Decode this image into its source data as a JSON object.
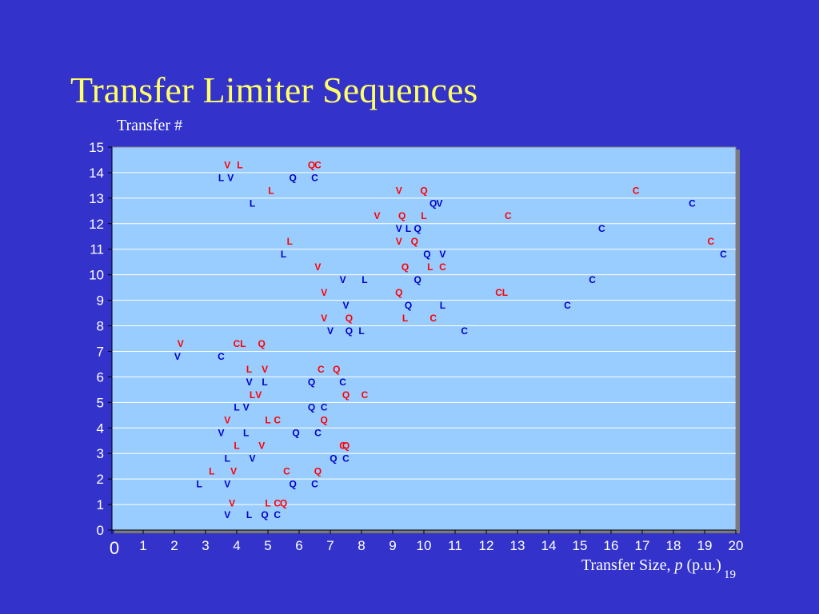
{
  "slide": {
    "title": "Transfer Limiter Sequences",
    "y_axis_title": "Transfer #",
    "x_axis_title_text": "Transfer Size, ",
    "x_axis_title_var": "p",
    "x_axis_title_unit": " (p.u.)",
    "page_number": "19"
  },
  "colors": {
    "background": "#3333cc",
    "plot_area": "#99ccff",
    "title": "#ffff66",
    "even_transfer": "#0000cc",
    "odd_transfer": "#ff0000"
  },
  "chart_data": {
    "type": "scatter",
    "title": "Transfer Limiter Sequences",
    "xlabel": "Transfer Size, p (p.u.)",
    "ylabel": "Transfer #",
    "xlim": [
      0,
      20
    ],
    "ylim": [
      0,
      15
    ],
    "x_ticks": [
      "0",
      "1",
      "2",
      "3",
      "4",
      "5",
      "6",
      "7",
      "8",
      "9",
      "10",
      "11",
      "12",
      "13",
      "14",
      "15",
      "16",
      "17",
      "18",
      "19",
      "20"
    ],
    "y_ticks": [
      "0",
      "1",
      "2",
      "3",
      "4",
      "5",
      "6",
      "7",
      "8",
      "9",
      "10",
      "11",
      "12",
      "13",
      "14",
      "15"
    ],
    "grid": true,
    "marker_labels": [
      "V",
      "L",
      "Q",
      "C"
    ],
    "transfers": [
      {
        "transfer": 0.6,
        "points": [
          {
            "label": "V",
            "x": 3.7
          },
          {
            "label": "L",
            "x": 4.4
          },
          {
            "label": "Q",
            "x": 4.9
          },
          {
            "label": "C",
            "x": 5.3
          }
        ]
      },
      {
        "transfer": 1.05,
        "points": [
          {
            "label": "V",
            "x": 3.85
          },
          {
            "label": "L",
            "x": 5.0
          },
          {
            "label": "C",
            "x": 5.3
          },
          {
            "label": "Q",
            "x": 5.5
          }
        ]
      },
      {
        "transfer": 1.8,
        "points": [
          {
            "label": "L",
            "x": 2.8
          },
          {
            "label": "V",
            "x": 3.7
          },
          {
            "label": "Q",
            "x": 5.8
          },
          {
            "label": "C",
            "x": 6.5
          }
        ]
      },
      {
        "transfer": 2.3,
        "points": [
          {
            "label": "L",
            "x": 3.2
          },
          {
            "label": "V",
            "x": 3.9
          },
          {
            "label": "C",
            "x": 5.6
          },
          {
            "label": "Q",
            "x": 6.6
          }
        ]
      },
      {
        "transfer": 2.8,
        "points": [
          {
            "label": "L",
            "x": 3.7
          },
          {
            "label": "V",
            "x": 4.5
          },
          {
            "label": "Q",
            "x": 7.1
          },
          {
            "label": "C",
            "x": 7.5
          }
        ]
      },
      {
        "transfer": 3.3,
        "points": [
          {
            "label": "L",
            "x": 4.0
          },
          {
            "label": "V",
            "x": 4.8
          },
          {
            "label": "C",
            "x": 7.4
          },
          {
            "label": "Q",
            "x": 7.5
          }
        ]
      },
      {
        "transfer": 3.8,
        "points": [
          {
            "label": "V",
            "x": 3.5
          },
          {
            "label": "L",
            "x": 4.3
          },
          {
            "label": "Q",
            "x": 5.9
          },
          {
            "label": "C",
            "x": 6.6
          }
        ]
      },
      {
        "transfer": 4.3,
        "points": [
          {
            "label": "V",
            "x": 3.7
          },
          {
            "label": "L",
            "x": 5.0
          },
          {
            "label": "C",
            "x": 5.3
          },
          {
            "label": "Q",
            "x": 6.8
          }
        ]
      },
      {
        "transfer": 4.8,
        "points": [
          {
            "label": "L",
            "x": 4.0
          },
          {
            "label": "V",
            "x": 4.3
          },
          {
            "label": "Q",
            "x": 6.4
          },
          {
            "label": "C",
            "x": 6.8
          }
        ]
      },
      {
        "transfer": 5.3,
        "points": [
          {
            "label": "L",
            "x": 4.5
          },
          {
            "label": "V",
            "x": 4.7
          },
          {
            "label": "Q",
            "x": 7.5
          },
          {
            "label": "C",
            "x": 8.1
          }
        ]
      },
      {
        "transfer": 5.8,
        "points": [
          {
            "label": "V",
            "x": 4.4
          },
          {
            "label": "L",
            "x": 4.9
          },
          {
            "label": "Q",
            "x": 6.4
          },
          {
            "label": "C",
            "x": 7.4
          }
        ]
      },
      {
        "transfer": 6.3,
        "points": [
          {
            "label": "L",
            "x": 4.4
          },
          {
            "label": "V",
            "x": 4.9
          },
          {
            "label": "C",
            "x": 6.7
          },
          {
            "label": "Q",
            "x": 7.2
          }
        ]
      },
      {
        "transfer": 6.8,
        "points": [
          {
            "label": "V",
            "x": 2.1
          },
          {
            "label": "C",
            "x": 3.5
          }
        ]
      },
      {
        "transfer": 7.3,
        "points": [
          {
            "label": "V",
            "x": 2.2
          },
          {
            "label": "C",
            "x": 4.0
          },
          {
            "label": "L",
            "x": 4.2
          },
          {
            "label": "Q",
            "x": 4.8
          }
        ]
      },
      {
        "transfer": 7.8,
        "points": [
          {
            "label": "V",
            "x": 7.0
          },
          {
            "label": "Q",
            "x": 7.6
          },
          {
            "label": "L",
            "x": 8.0
          },
          {
            "label": "C",
            "x": 11.3
          }
        ]
      },
      {
        "transfer": 8.3,
        "points": [
          {
            "label": "V",
            "x": 6.8
          },
          {
            "label": "Q",
            "x": 7.6
          },
          {
            "label": "L",
            "x": 9.4
          },
          {
            "label": "C",
            "x": 10.3
          }
        ]
      },
      {
        "transfer": 8.8,
        "points": [
          {
            "label": "V",
            "x": 7.5
          },
          {
            "label": "Q",
            "x": 9.5
          },
          {
            "label": "L",
            "x": 10.6
          },
          {
            "label": "C",
            "x": 14.6
          }
        ]
      },
      {
        "transfer": 9.3,
        "points": [
          {
            "label": "V",
            "x": 6.8
          },
          {
            "label": "Q",
            "x": 9.2
          },
          {
            "label": "C",
            "x": 12.4
          },
          {
            "label": "L",
            "x": 12.6
          }
        ]
      },
      {
        "transfer": 9.8,
        "points": [
          {
            "label": "V",
            "x": 7.4
          },
          {
            "label": "L",
            "x": 8.1
          },
          {
            "label": "Q",
            "x": 9.8
          },
          {
            "label": "C",
            "x": 15.4
          }
        ]
      },
      {
        "transfer": 10.3,
        "points": [
          {
            "label": "V",
            "x": 6.6
          },
          {
            "label": "Q",
            "x": 9.4
          },
          {
            "label": "L",
            "x": 10.2
          },
          {
            "label": "C",
            "x": 10.6
          }
        ]
      },
      {
        "transfer": 10.8,
        "points": [
          {
            "label": "L",
            "x": 5.5
          },
          {
            "label": "Q",
            "x": 10.1
          },
          {
            "label": "V",
            "x": 10.6
          },
          {
            "label": "C",
            "x": 19.6
          }
        ]
      },
      {
        "transfer": 11.3,
        "points": [
          {
            "label": "L",
            "x": 5.7
          },
          {
            "label": "V",
            "x": 9.2
          },
          {
            "label": "Q",
            "x": 9.7
          },
          {
            "label": "C",
            "x": 19.2
          }
        ]
      },
      {
        "transfer": 11.8,
        "points": [
          {
            "label": "V",
            "x": 9.2
          },
          {
            "label": "L",
            "x": 9.5
          },
          {
            "label": "Q",
            "x": 9.8
          },
          {
            "label": "C",
            "x": 15.7
          }
        ]
      },
      {
        "transfer": 12.3,
        "points": [
          {
            "label": "V",
            "x": 8.5
          },
          {
            "label": "Q",
            "x": 9.3
          },
          {
            "label": "L",
            "x": 10.0
          },
          {
            "label": "C",
            "x": 12.7
          }
        ]
      },
      {
        "transfer": 12.8,
        "points": [
          {
            "label": "L",
            "x": 4.5
          },
          {
            "label": "Q",
            "x": 10.3
          },
          {
            "label": "V",
            "x": 10.5
          },
          {
            "label": "C",
            "x": 18.6
          }
        ]
      },
      {
        "transfer": 13.3,
        "points": [
          {
            "label": "L",
            "x": 5.1
          },
          {
            "label": "V",
            "x": 9.2
          },
          {
            "label": "Q",
            "x": 10.0
          },
          {
            "label": "C",
            "x": 16.8
          }
        ]
      },
      {
        "transfer": 13.8,
        "points": [
          {
            "label": "L",
            "x": 3.5
          },
          {
            "label": "V",
            "x": 3.8
          },
          {
            "label": "Q",
            "x": 5.8
          },
          {
            "label": "C",
            "x": 6.5
          }
        ]
      },
      {
        "transfer": 14.3,
        "points": [
          {
            "label": "V",
            "x": 3.7
          },
          {
            "label": "L",
            "x": 4.1
          },
          {
            "label": "Q",
            "x": 6.4
          },
          {
            "label": "C",
            "x": 6.6
          }
        ]
      }
    ]
  }
}
